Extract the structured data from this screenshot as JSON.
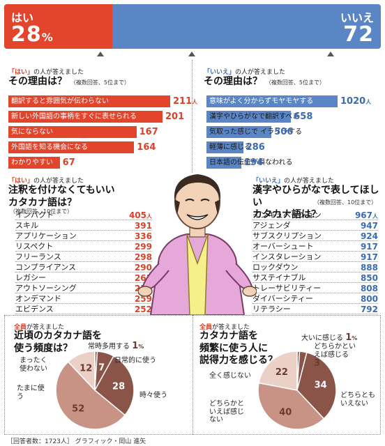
{
  "top": {
    "yes": {
      "label": "はい",
      "value": "28",
      "unit": "%"
    },
    "no": {
      "label": "いいえ",
      "value": "72"
    }
  },
  "colors": {
    "yes": "#e3442c",
    "no": "#5a86c6",
    "pie_dark": "#8a5448",
    "pie_mid": "#c89384",
    "pie_light": "#ead0c6"
  },
  "reasons_yes": {
    "tag_prefix": "「はい」",
    "tag_suffix": "の人が答えました",
    "title": "その理由は？",
    "note": "（複数回答、5位まで）"
  },
  "reasons_no": {
    "tag_prefix": "「いいえ」",
    "tag_suffix": "の人が答えました",
    "title": "その理由は？",
    "note": "（複数回答、5位まで）"
  },
  "katakana_yes": {
    "tag_prefix": "「はい」",
    "tag_suffix": "の人が答えました",
    "title_line1": "注釈を付けなくてもいい",
    "title_line2": "カタカナ語は？",
    "note": "（複数回答、10位まで）"
  },
  "katakana_no": {
    "tag_prefix": "「いいえ」",
    "tag_suffix": "の人が答えました",
    "title_line1": "漢字やひらがなで表してほしい",
    "title_line2": "カタカナ語は？",
    "note": "（複数回答、10位まで）"
  },
  "freq": {
    "tag_prefix": "全員",
    "tag_suffix": "が答えました",
    "title_line1": "近頃のカタカナ語を",
    "title_line2": "使う頻度は？"
  },
  "persuasive": {
    "tag_prefix": "全員",
    "tag_suffix": "が答えました",
    "title_line1": "カタカナ語を",
    "title_line2": "頻繁に使う人に",
    "title_line3": "説得力を感じる？"
  },
  "footer": {
    "respondents": "［回答者数：1723人］",
    "credit": "グラフィック・岡山 進矢"
  },
  "chart_data": [
    {
      "type": "bar",
      "title": "その理由は？",
      "unit": "人",
      "categories": [
        "翻訳すると雰囲気が伝わらない",
        "新しい外国語の事柄をすぐに表せられる",
        "気にならない",
        "外国語を知る機会になる",
        "わかりやすい"
      ],
      "values": [
        211,
        201,
        167,
        164,
        67
      ],
      "xlim": [
        0,
        211
      ]
    },
    {
      "type": "bar",
      "title": "その理由は？",
      "unit": "人",
      "categories": [
        "意味がよく分からずモヤモヤする",
        "漢字やひらがなで翻訳すべき",
        "気取った感じで\nイライラする",
        "軽薄に感じる",
        "日本語の伝統が損なわれる"
      ],
      "values": [
        1020,
        658,
        506,
        286,
        194
      ],
      "xlim": [
        0,
        1020
      ]
    },
    {
      "type": "table",
      "title": "注釈を付けなくてもいいカタカナ語は？",
      "unit": "人",
      "categories": [
        "インパクト",
        "スキル",
        "アプリケーション",
        "リスペクト",
        "フリーランス",
        "コンプライアンス",
        "レガシー",
        "アウトソーシング",
        "オンデマンド",
        "エビデンス"
      ],
      "values": [
        405,
        391,
        336,
        299,
        298,
        290,
        261,
        259,
        259,
        252
      ]
    },
    {
      "type": "table",
      "title": "漢字やひらがなで表してほしいカタカナ語は？",
      "unit": "人",
      "categories": [
        "インキュベーション",
        "アジェンダ",
        "サブスクリプション",
        "オーバーシュート",
        "インスタレーション",
        "ロックダウン",
        "サステイナブル",
        "トレーサビリティー",
        "ダイバーシティー",
        "リテラシー"
      ],
      "values": [
        967,
        947,
        924,
        917,
        917,
        888,
        850,
        808,
        800,
        792
      ]
    },
    {
      "type": "pie",
      "title": "近頃のカタカナ語を使う頻度は？",
      "unit": "%",
      "categories": [
        "常時多用する",
        "日常的に使う",
        "時々使う",
        "たまに使う",
        "まったく使わない"
      ],
      "values": [
        1,
        7,
        28,
        52,
        12
      ]
    },
    {
      "type": "pie",
      "title": "カタカナ語を頻繁に使う人に説得力を感じる？",
      "unit": "%",
      "categories": [
        "大いに感じる",
        "どちらかといえば感じる",
        "どちらともいえない",
        "どちらかといえば感じない",
        "全く感じない"
      ],
      "values": [
        1,
        3,
        34,
        40,
        22
      ]
    }
  ]
}
